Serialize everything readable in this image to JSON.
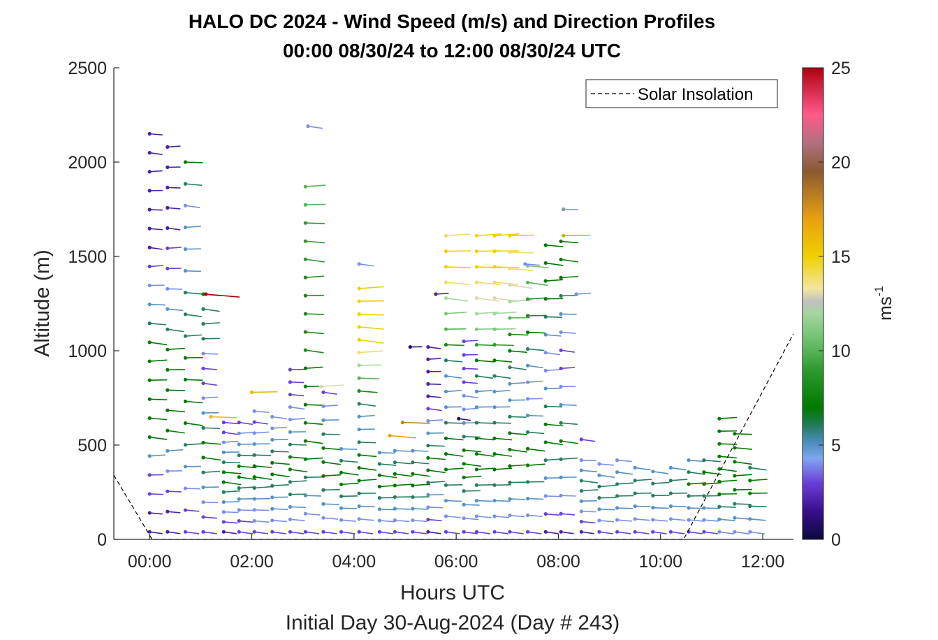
{
  "chart_data": {
    "type": "scatter",
    "title": "HALO DC 2024 - Wind Speed (m/s) and Direction Profiles",
    "subtitle": "00:00 08/30/24 to 12:00 08/30/24  UTC",
    "xlabel": "Hours UTC",
    "xlabel2": "Initial Day 30-Aug-2024 (Day # 243)",
    "ylabel": "Altitude (m)",
    "xlim": [
      -0.7,
      12.6
    ],
    "ylim": [
      0,
      2500
    ],
    "x_ticks": [
      0,
      2,
      4,
      6,
      8,
      10,
      12
    ],
    "x_tick_labels": [
      "00:00",
      "02:00",
      "04:00",
      "06:00",
      "08:00",
      "10:00",
      "12:00"
    ],
    "y_ticks": [
      0,
      500,
      1000,
      1500,
      2000,
      2500
    ],
    "y_tick_labels": [
      "0",
      "500",
      "1000",
      "1500",
      "2000",
      "2500"
    ],
    "legend": {
      "position": "top-right",
      "entries": [
        "Solar Insolation"
      ]
    },
    "colorbar": {
      "label": "ms",
      "label_exponent": "-1",
      "range": [
        0,
        25
      ],
      "ticks": [
        0,
        5,
        10,
        15,
        20,
        25
      ],
      "tick_labels": [
        "0",
        "5",
        "10",
        "15",
        "20",
        "25"
      ],
      "stops": [
        {
          "v": 0,
          "c": "#0a0a3c"
        },
        {
          "v": 1.5,
          "c": "#3a0e8c"
        },
        {
          "v": 3,
          "c": "#6a3fd8"
        },
        {
          "v": 4.3,
          "c": "#7ea6f0"
        },
        {
          "v": 5.2,
          "c": "#4a8bb8"
        },
        {
          "v": 6.2,
          "c": "#1a7a4a"
        },
        {
          "v": 7,
          "c": "#007a00"
        },
        {
          "v": 9,
          "c": "#2e9a2e"
        },
        {
          "v": 10.5,
          "c": "#6cbf6c"
        },
        {
          "v": 12,
          "c": "#a6d6a0"
        },
        {
          "v": 12.6,
          "c": "#c0c0c0"
        },
        {
          "v": 13.3,
          "c": "#f2e6a0"
        },
        {
          "v": 15,
          "c": "#f0d000"
        },
        {
          "v": 17,
          "c": "#e8a010"
        },
        {
          "v": 19.5,
          "c": "#8a5a30"
        },
        {
          "v": 21,
          "c": "#b07080"
        },
        {
          "v": 22.5,
          "c": "#ff5a8a"
        },
        {
          "v": 25,
          "c": "#b00010"
        }
      ]
    },
    "solar_insolation": {
      "style": "dashed",
      "x": [
        -0.7,
        0.05,
        10.45,
        12.6
      ],
      "y": [
        340,
        0,
        0,
        1090
      ]
    },
    "profiles": [
      {
        "t": 0.0,
        "top": 2150,
        "speeds": [
          2,
          2,
          3,
          3,
          5,
          7,
          7,
          7,
          7,
          7,
          7,
          6,
          5,
          4,
          3,
          2,
          2,
          2,
          2,
          2,
          2,
          2
        ]
      },
      {
        "t": 0.35,
        "top": 2080,
        "speeds": [
          2,
          2,
          3,
          4,
          5,
          7,
          7,
          7,
          7,
          7,
          6,
          5,
          4,
          3,
          3,
          2,
          2,
          2,
          2,
          2
        ]
      },
      {
        "t": 0.7,
        "top": 2000,
        "speeds": [
          3,
          3,
          4,
          5,
          6,
          7,
          7,
          7,
          7,
          6,
          6,
          6,
          5,
          5,
          5,
          4,
          6,
          7
        ]
      },
      {
        "t": 1.05,
        "top": 1300,
        "speeds": [
          3,
          3,
          4,
          5,
          6,
          7,
          7,
          6,
          5,
          4,
          3,
          3,
          4,
          6,
          6,
          6,
          7
        ]
      },
      {
        "t": 1.45,
        "top": 620,
        "speeds": [
          2,
          3,
          4,
          5,
          6,
          7,
          7,
          6,
          5,
          4,
          3,
          3
        ]
      },
      {
        "t": 1.75,
        "top": 620,
        "speeds": [
          3,
          3,
          4,
          5,
          6,
          7,
          7,
          6,
          5,
          4,
          3
        ]
      },
      {
        "t": 2.05,
        "top": 680,
        "speeds": [
          3,
          4,
          4,
          5,
          6,
          7,
          7,
          6,
          5,
          4,
          3,
          4
        ]
      },
      {
        "t": 2.4,
        "top": 650,
        "speeds": [
          3,
          4,
          5,
          5,
          6,
          7,
          7,
          6,
          5,
          4,
          4
        ]
      },
      {
        "t": 2.75,
        "top": 900,
        "speeds": [
          3,
          4,
          5,
          6,
          6,
          7,
          7,
          6,
          5,
          4,
          4,
          3,
          3,
          3
        ]
      },
      {
        "t": 3.05,
        "top": 1870,
        "speeds": [
          3,
          4,
          5,
          6,
          7,
          7,
          7,
          7,
          7,
          7,
          8,
          8,
          8,
          8,
          8,
          9,
          9,
          9,
          10,
          10
        ]
      },
      {
        "t": 3.4,
        "top": 780,
        "speeds": [
          3,
          4,
          5,
          6,
          7,
          7,
          7,
          6,
          5,
          4,
          3
        ]
      },
      {
        "t": 3.75,
        "top": 480,
        "speeds": [
          3,
          4,
          5,
          6,
          7,
          7,
          6,
          5
        ]
      },
      {
        "t": 4.1,
        "top": 1330,
        "speeds": [
          3,
          4,
          5,
          6,
          7,
          7,
          7,
          6,
          5,
          5,
          6,
          8,
          10,
          12,
          14,
          15,
          15,
          15,
          15,
          15
        ]
      },
      {
        "t": 4.5,
        "top": 460,
        "speeds": [
          3,
          4,
          5,
          6,
          7,
          7,
          6,
          5
        ]
      },
      {
        "t": 4.8,
        "top": 470,
        "speeds": [
          3,
          4,
          5,
          6,
          7,
          7,
          6,
          5
        ]
      },
      {
        "t": 5.15,
        "top": 470,
        "speeds": [
          3,
          4,
          5,
          6,
          7,
          7,
          6,
          5
        ]
      },
      {
        "t": 5.45,
        "top": 1020,
        "speeds": [
          2,
          3,
          4,
          5,
          6,
          7,
          7,
          6,
          5,
          4,
          3,
          2,
          2,
          2,
          2,
          2
        ]
      },
      {
        "t": 5.8,
        "top": 1610,
        "speeds": [
          3,
          4,
          5,
          6,
          7,
          7,
          7,
          6,
          5,
          5,
          5,
          6,
          8,
          10,
          11,
          12,
          14,
          15,
          15,
          14
        ]
      },
      {
        "t": 6.15,
        "top": 1050,
        "speeds": [
          3,
          4,
          5,
          6,
          7,
          7,
          7,
          6,
          5,
          4,
          4,
          3,
          3,
          3,
          3
        ]
      },
      {
        "t": 6.4,
        "top": 1610,
        "speeds": [
          3,
          4,
          5,
          6,
          7,
          7,
          7,
          6,
          5,
          5,
          6,
          7,
          9,
          11,
          12,
          13,
          14,
          15,
          15,
          15
        ]
      },
      {
        "t": 6.75,
        "top": 1610,
        "speeds": [
          3,
          4,
          5,
          6,
          7,
          7,
          7,
          6,
          5,
          5,
          6,
          7,
          9,
          11,
          12,
          13,
          14,
          15,
          15,
          15
        ]
      },
      {
        "t": 7.05,
        "top": 1610,
        "speeds": [
          3,
          4,
          5,
          6,
          7,
          7,
          7,
          6,
          5,
          5,
          6,
          7,
          8,
          10,
          12,
          13,
          14,
          14,
          15
        ]
      },
      {
        "t": 7.4,
        "top": 1450,
        "speeds": [
          3,
          4,
          5,
          6,
          7,
          7,
          6,
          5,
          4,
          4,
          5,
          6,
          7,
          8,
          9,
          10,
          11
        ]
      },
      {
        "t": 7.75,
        "top": 1560,
        "speeds": [
          2,
          3,
          4,
          5,
          6,
          7,
          7,
          6,
          5,
          4,
          4,
          5,
          6,
          7,
          7,
          7,
          7
        ]
      },
      {
        "t": 8.05,
        "top": 1580,
        "speeds": [
          2,
          3,
          4,
          5,
          6,
          7,
          6,
          5,
          4,
          3,
          3,
          4,
          5,
          6,
          7,
          7,
          7
        ]
      },
      {
        "t": 8.45,
        "top": 420,
        "speeds": [
          2,
          3,
          4,
          5,
          6,
          6,
          5,
          4
        ]
      },
      {
        "t": 8.8,
        "top": 400,
        "speeds": [
          3,
          4,
          5,
          6,
          6,
          5,
          4
        ]
      },
      {
        "t": 9.15,
        "top": 420,
        "speeds": [
          3,
          4,
          5,
          6,
          6,
          5,
          4
        ]
      },
      {
        "t": 9.5,
        "top": 380,
        "speeds": [
          3,
          4,
          5,
          6,
          6,
          5
        ]
      },
      {
        "t": 9.85,
        "top": 360,
        "speeds": [
          3,
          4,
          5,
          6,
          6,
          5
        ]
      },
      {
        "t": 10.2,
        "top": 380,
        "speeds": [
          3,
          4,
          5,
          6,
          6,
          5
        ]
      },
      {
        "t": 10.55,
        "top": 420,
        "speeds": [
          3,
          4,
          5,
          6,
          7,
          6,
          5
        ]
      },
      {
        "t": 10.85,
        "top": 420,
        "speeds": [
          3,
          4,
          5,
          6,
          7,
          7,
          6
        ]
      },
      {
        "t": 11.15,
        "top": 640,
        "speeds": [
          4,
          5,
          6,
          7,
          7,
          7,
          7,
          7,
          7,
          7
        ]
      },
      {
        "t": 11.45,
        "top": 560,
        "speeds": [
          4,
          5,
          6,
          7,
          7,
          7,
          7,
          7
        ]
      },
      {
        "t": 11.75,
        "top": 380,
        "speeds": [
          4,
          5,
          6,
          7,
          7,
          6
        ]
      }
    ],
    "isolated": [
      {
        "t": 3.1,
        "z": 2190,
        "s": 4
      },
      {
        "t": 1.1,
        "z": 1300,
        "s": 25
      },
      {
        "t": 1.2,
        "z": 650,
        "s": 16
      },
      {
        "t": 2.0,
        "z": 780,
        "s": 16
      },
      {
        "t": 3.35,
        "z": 810,
        "s": 13
      },
      {
        "t": 4.1,
        "z": 1460,
        "s": 4
      },
      {
        "t": 4.7,
        "z": 550,
        "s": 17
      },
      {
        "t": 4.95,
        "z": 620,
        "s": 18
      },
      {
        "t": 5.1,
        "z": 1020,
        "s": 1
      },
      {
        "t": 5.6,
        "z": 1300,
        "s": 2
      },
      {
        "t": 6.05,
        "z": 640,
        "s": 1
      },
      {
        "t": 7.35,
        "z": 1460,
        "s": 4
      },
      {
        "t": 8.1,
        "z": 1750,
        "s": 4
      },
      {
        "t": 8.1,
        "z": 1610,
        "s": 17
      },
      {
        "t": 8.35,
        "z": 1300,
        "s": 4
      },
      {
        "t": 8.45,
        "z": 530,
        "s": 3
      }
    ]
  }
}
